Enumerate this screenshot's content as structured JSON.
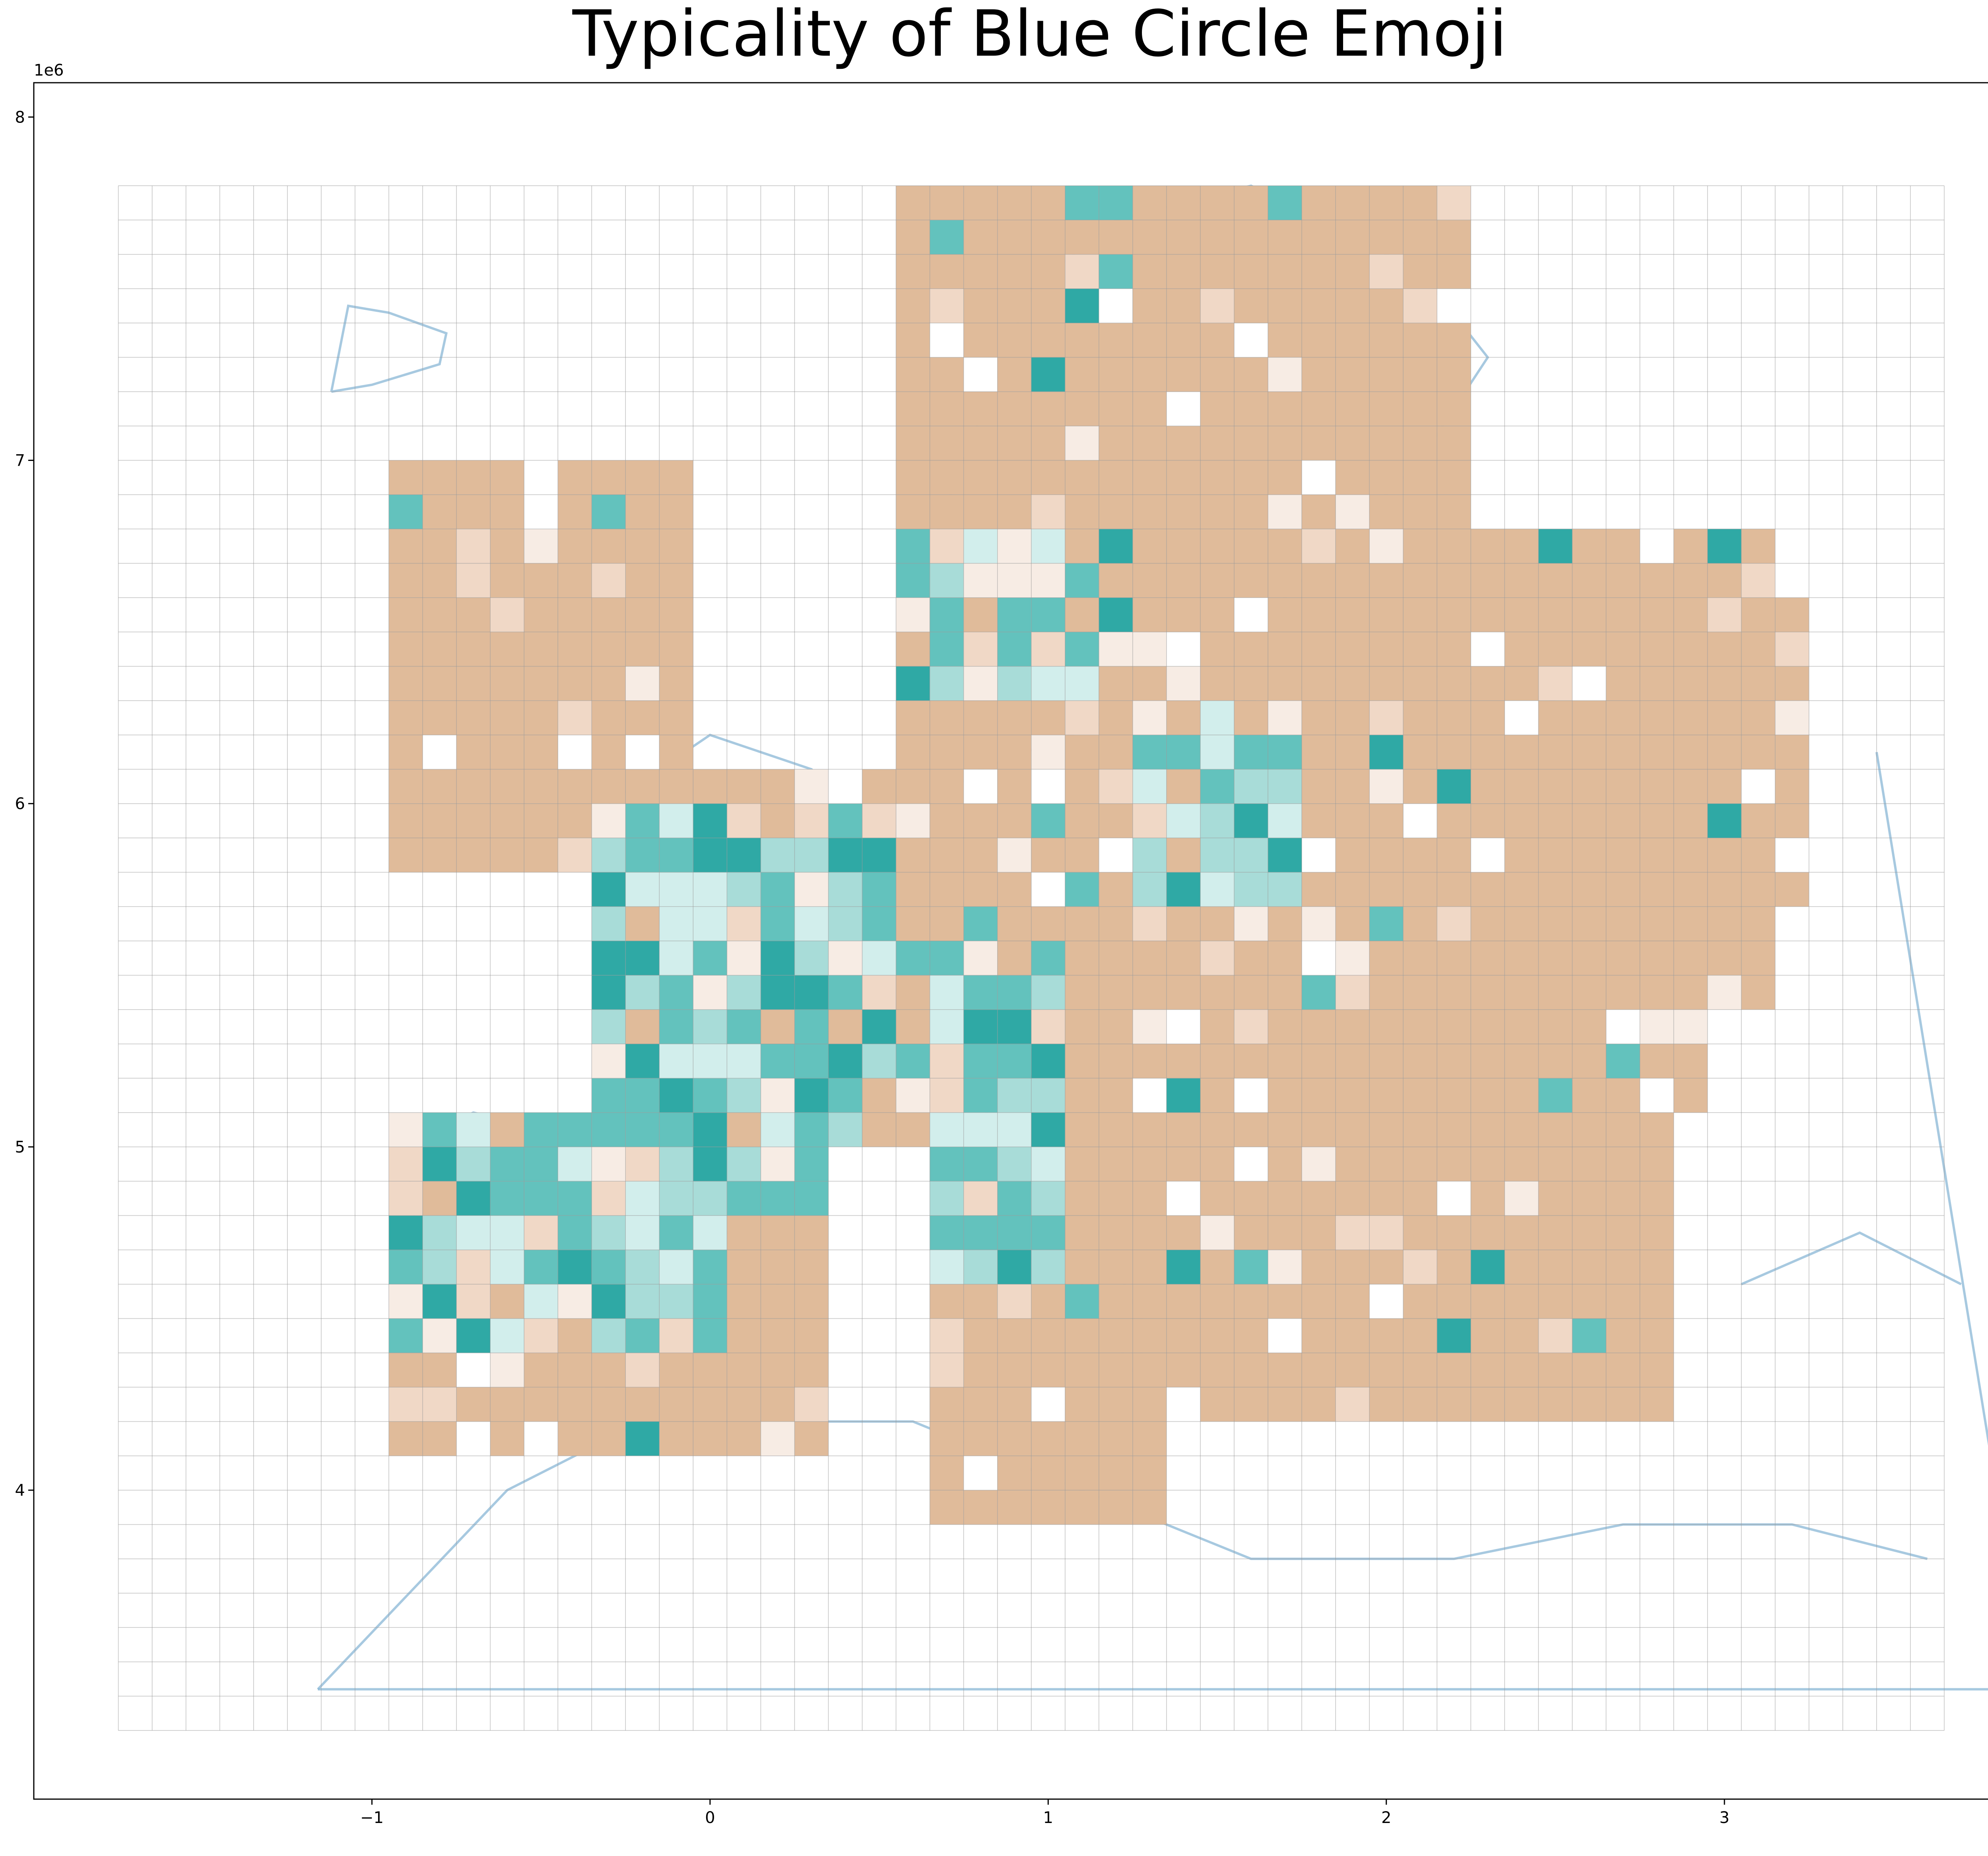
{
  "chart_data": {
    "type": "heatmap",
    "title": "Typicality of Blue Circle Emoji",
    "xlabel": "",
    "ylabel": "",
    "x_exponent_label": "1e6",
    "y_exponent_label": "1e6",
    "xlim": [
      -2.0,
      3.95
    ],
    "ylim": [
      3.1,
      8.1
    ],
    "x_ticks": [
      -1,
      0,
      1,
      2,
      3
    ],
    "y_ticks": [
      4,
      5,
      6,
      7,
      8
    ],
    "x_tick_labels": [
      "−1",
      "0",
      "1",
      "2",
      "3"
    ],
    "y_tick_labels": [
      "4",
      "5",
      "6",
      "7",
      "8"
    ],
    "grid": true,
    "grid_origin": [
      -1.75,
      3.3
    ],
    "cell_size": 0.1,
    "grid_cols": 54,
    "grid_rows": 45,
    "colors": {
      "tan": "#e0bb9a",
      "light_tan": "#f0d8c6",
      "pale": "#f7ece4",
      "white": "#ffffff",
      "pale_teal": "#d2eeec",
      "light_teal": "#a8dcd8",
      "teal": "#63c2bd",
      "dark_teal": "#2fa9a5",
      "grid": "#9a9a9a",
      "coast": "#8ab7d6"
    },
    "cells": [
      [
        2,
        0,
        44
      ],
      [
        2,
        0,
        43
      ],
      [
        3,
        0,
        42
      ],
      [
        2,
        0,
        41
      ],
      [
        3,
        0,
        40
      ],
      [
        2,
        0,
        39
      ],
      [
        2,
        0,
        38
      ],
      [
        4,
        0,
        37
      ],
      [
        2,
        0,
        36
      ],
      [
        3,
        0,
        35
      ],
      [
        2,
        0,
        34
      ],
      [
        5,
        0,
        33
      ],
      [
        2,
        0,
        32
      ],
      [
        4,
        0,
        31
      ],
      [
        6,
        0,
        30
      ],
      [
        2,
        0,
        29
      ],
      [
        3,
        0,
        28
      ],
      [
        2,
        0,
        27
      ],
      [
        2,
        1,
        44
      ],
      [
        2,
        1,
        43
      ],
      [
        2,
        1,
        42
      ],
      [
        2,
        1,
        41
      ],
      [
        3,
        1,
        40
      ],
      [
        5,
        1,
        39
      ],
      [
        2,
        1,
        38
      ],
      [
        2,
        1,
        37
      ],
      [
        2,
        1,
        36
      ],
      [
        7,
        1,
        35
      ],
      [
        2,
        1,
        34
      ],
      [
        2,
        1,
        33
      ],
      [
        2,
        1,
        32
      ],
      [
        2,
        1,
        31
      ],
      [
        2,
        1,
        30
      ],
      [
        4,
        1,
        29
      ],
      [
        2,
        1,
        28
      ],
      [
        2,
        1,
        27
      ],
      [
        2,
        1,
        26
      ],
      [
        3,
        2,
        44
      ],
      [
        2,
        2,
        43
      ],
      [
        2,
        2,
        42
      ],
      [
        2,
        2,
        41
      ],
      [
        2,
        2,
        40
      ],
      [
        2,
        2,
        39
      ],
      [
        2,
        2,
        38
      ],
      [
        2,
        2,
        37
      ],
      [
        6,
        2,
        36
      ],
      [
        2,
        2,
        35
      ],
      [
        2,
        2,
        34
      ],
      [
        2,
        2,
        33
      ],
      [
        2,
        2,
        32
      ],
      [
        2,
        2,
        31
      ],
      [
        2,
        2,
        30
      ],
      [
        2,
        2,
        29
      ],
      [
        2,
        2,
        28
      ],
      [
        2,
        2,
        27
      ]
    ],
    "detail_cells": [
      [
        7,
        28,
        38
      ],
      [
        1,
        30,
        32
      ],
      [
        7,
        27,
        32
      ],
      [
        7,
        29,
        32
      ],
      [
        6,
        30,
        30
      ],
      [
        7,
        24,
        30
      ],
      [
        1,
        30,
        29
      ],
      [
        5,
        29,
        28
      ],
      [
        6,
        24,
        28
      ],
      [
        6,
        23,
        27
      ],
      [
        7,
        22,
        24
      ],
      [
        6,
        23,
        26
      ],
      [
        6,
        25,
        25
      ],
      [
        5,
        27,
        25
      ],
      [
        6,
        31,
        25
      ],
      [
        7,
        33,
        25
      ],
      [
        4,
        34,
        25
      ],
      [
        6,
        29,
        24
      ],
      [
        7,
        36,
        24
      ]
    ]
  }
}
